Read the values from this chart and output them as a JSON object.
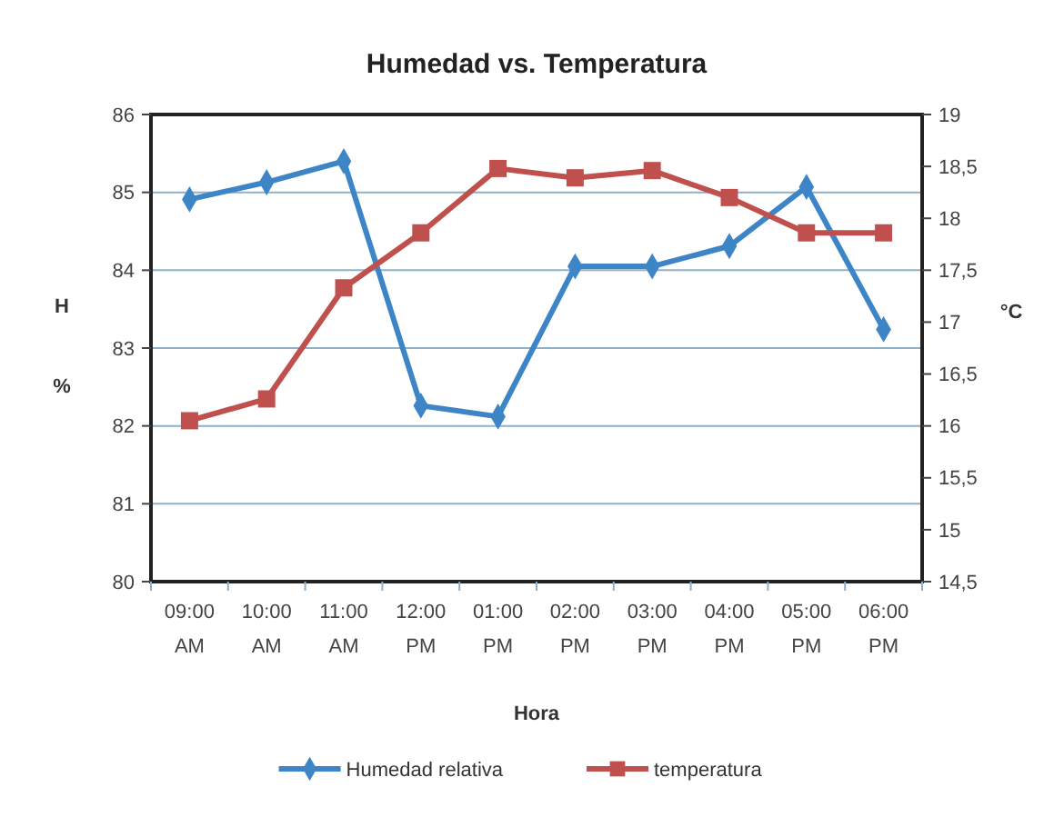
{
  "chart_data": {
    "type": "line",
    "title": "Humedad vs. Temperatura",
    "xlabel": "Hora",
    "ylabel": "H %",
    "y2label": "°C",
    "categories": [
      "09:00 AM",
      "10:00 AM",
      "11:00 AM",
      "12:00 PM",
      "01:00 PM",
      "02:00 PM",
      "03:00 PM",
      "04:00 PM",
      "05:00 PM",
      "06:00 PM"
    ],
    "series": [
      {
        "name": "Humedad relativa",
        "color": "#3d85c6",
        "marker": "diamond",
        "values": [
          84.91,
          85.13,
          85.4,
          82.26,
          82.12,
          84.05,
          84.05,
          84.31,
          85.07,
          83.24
        ]
      },
      {
        "name": "temperatura",
        "color": "#c0504d",
        "marker": "square",
        "axis": "y2",
        "values": [
          16.05,
          16.26,
          17.33,
          17.86,
          18.48,
          18.39,
          18.46,
          18.2,
          17.86,
          17.86
        ]
      }
    ],
    "ylim": [
      80,
      86
    ],
    "yticks": [
      80,
      81,
      82,
      83,
      84,
      85,
      86
    ],
    "y2lim": [
      14.5,
      19
    ],
    "y2ticks": [
      {
        "value": 14.5,
        "label": "14,5"
      },
      15,
      {
        "value": 15.5,
        "label": "15,5"
      },
      16,
      {
        "value": 16.5,
        "label": "16,5"
      },
      17,
      {
        "value": 17.5,
        "label": "17,5"
      },
      18,
      {
        "value": 18.5,
        "label": "18,5"
      },
      19
    ],
    "grid": "y",
    "legend": "bottom"
  }
}
